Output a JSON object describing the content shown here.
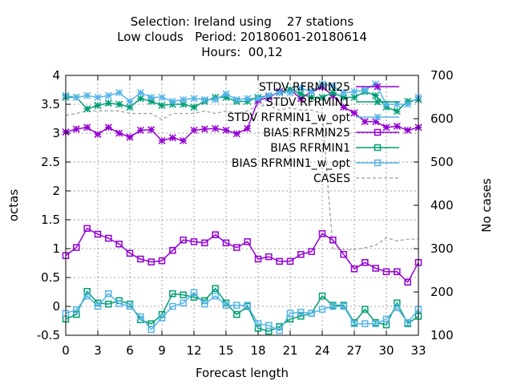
{
  "chart_data": {
    "type": "line",
    "title_lines": [
      "Selection: Ireland using    27 stations",
      "Low clouds   Period: 20180601-20180614",
      "Hours:  00,12"
    ],
    "xlabel": "Forecast length",
    "ylabel": "octas",
    "y2label": "No cases",
    "xlim": [
      0,
      33
    ],
    "ylim": [
      -0.5,
      4
    ],
    "y2lim": [
      100,
      700
    ],
    "xticks": [
      0,
      3,
      6,
      9,
      12,
      15,
      18,
      21,
      24,
      27,
      30,
      33
    ],
    "yticks": [
      -0.5,
      0,
      0.5,
      1,
      1.5,
      2,
      2.5,
      3,
      3.5,
      4
    ],
    "yticklabels": [
      "-0.5",
      "0",
      "0.5",
      "1",
      "1.5",
      "2",
      "2.5",
      "3",
      "3.5",
      "4"
    ],
    "y2ticks": [
      100,
      200,
      300,
      400,
      500,
      600,
      700
    ],
    "grid": true,
    "legend_position": "top-right",
    "x": [
      0,
      1,
      2,
      3,
      4,
      5,
      6,
      7,
      8,
      9,
      10,
      11,
      12,
      13,
      14,
      15,
      16,
      17,
      18,
      19,
      20,
      21,
      22,
      23,
      24,
      25,
      26,
      27,
      28,
      29,
      30,
      31,
      32,
      33
    ],
    "series": [
      {
        "name": "STDV RFRMIN25",
        "color": "#9400d3",
        "marker": "x",
        "axis": "y",
        "values": [
          3.02,
          3.07,
          3.1,
          2.98,
          3.1,
          3.0,
          2.93,
          3.05,
          3.06,
          2.87,
          2.92,
          2.87,
          3.05,
          3.07,
          3.08,
          3.05,
          2.99,
          3.08,
          3.57,
          3.62,
          3.72,
          3.75,
          3.6,
          3.72,
          3.8,
          3.65,
          3.45,
          3.35,
          3.2,
          3.2,
          3.1,
          3.12,
          3.05,
          3.1
        ]
      },
      {
        "name": "STDV RFRMIN1",
        "color": "#009e73",
        "marker": "x",
        "axis": "y",
        "values": [
          3.62,
          3.62,
          3.42,
          3.48,
          3.52,
          3.5,
          3.45,
          3.6,
          3.55,
          3.48,
          3.5,
          3.5,
          3.45,
          3.55,
          3.62,
          3.62,
          3.55,
          3.55,
          3.62,
          3.65,
          3.7,
          3.75,
          3.68,
          3.62,
          3.62,
          3.7,
          3.62,
          3.62,
          3.72,
          3.65,
          3.45,
          3.38,
          3.55,
          3.58
        ]
      },
      {
        "name": "STDV RFRMIN1_w_opt",
        "color": "#56b4e9",
        "marker": "x",
        "axis": "y",
        "values": [
          3.65,
          3.62,
          3.65,
          3.62,
          3.65,
          3.7,
          3.55,
          3.7,
          3.62,
          3.62,
          3.55,
          3.58,
          3.6,
          3.58,
          3.58,
          3.68,
          3.58,
          3.6,
          3.6,
          3.65,
          3.7,
          3.7,
          3.78,
          3.72,
          3.85,
          3.82,
          3.7,
          3.72,
          3.75,
          3.85,
          3.5,
          3.5,
          3.5,
          3.62
        ]
      },
      {
        "name": "BIAS RFRMIN25",
        "color": "#9400d3",
        "marker": "square",
        "axis": "y",
        "values": [
          0.88,
          1.02,
          1.35,
          1.25,
          1.18,
          1.08,
          0.92,
          0.82,
          0.77,
          0.79,
          0.97,
          1.15,
          1.12,
          1.1,
          1.24,
          1.1,
          1.02,
          1.12,
          0.82,
          0.86,
          0.78,
          0.78,
          0.9,
          0.95,
          1.26,
          1.15,
          0.9,
          0.65,
          0.76,
          0.66,
          0.6,
          0.6,
          0.42,
          0.76
        ]
      },
      {
        "name": "BIAS RFRMIN1",
        "color": "#009e73",
        "marker": "square",
        "axis": "y",
        "values": [
          -0.22,
          -0.14,
          0.26,
          0.06,
          0.04,
          0.1,
          0.04,
          -0.23,
          -0.3,
          -0.14,
          0.22,
          0.2,
          0.16,
          0.1,
          0.31,
          0.06,
          -0.14,
          0.0,
          -0.38,
          -0.43,
          -0.35,
          -0.22,
          -0.17,
          -0.12,
          0.18,
          0.02,
          0.02,
          -0.28,
          -0.05,
          -0.28,
          -0.32,
          0.06,
          -0.3,
          -0.17
        ]
      },
      {
        "name": "BIAS RFRMIN1_w_opt",
        "color": "#56b4e9",
        "marker": "square",
        "axis": "y",
        "values": [
          -0.12,
          -0.06,
          0.18,
          0.0,
          0.22,
          0.05,
          0.0,
          -0.18,
          -0.4,
          -0.2,
          0.0,
          0.06,
          0.24,
          0.04,
          0.18,
          0.02,
          0.02,
          0.02,
          -0.3,
          -0.33,
          -0.42,
          -0.12,
          -0.1,
          -0.12,
          -0.05,
          0.0,
          0.0,
          -0.3,
          -0.3,
          -0.3,
          -0.22,
          -0.02,
          -0.28,
          -0.05
        ]
      },
      {
        "name": "CASES",
        "color": "#a0a0a0",
        "marker": "none",
        "dashed": true,
        "axis": "y2",
        "values": [
          608,
          612,
          618,
          618,
          618,
          618,
          612,
          612,
          612,
          598,
          612,
          612,
          612,
          618,
          612,
          618,
          612,
          618,
          630,
          630,
          620,
          625,
          620,
          620,
          612,
          300,
          298,
          298,
          302,
          308,
          325,
          318,
          322,
          322
        ]
      }
    ]
  }
}
